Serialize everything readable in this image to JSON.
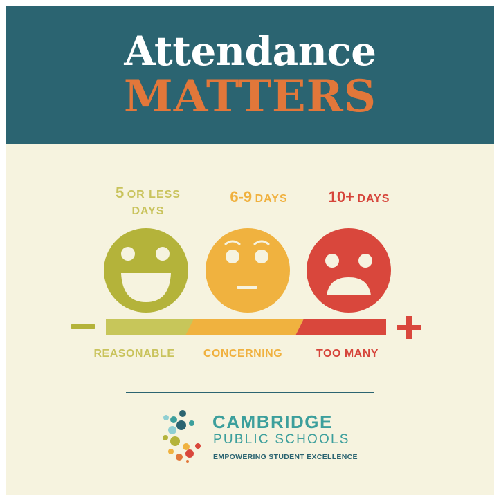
{
  "header": {
    "title_line1": "Attendance",
    "title_line2": "MATTERS"
  },
  "levels": [
    {
      "days_number": "5",
      "days_text_1": "OR LESS",
      "days_text_2": "DAYS",
      "category": "REASONABLE",
      "face": "smiling-face-icon",
      "color": "#b4b33a"
    },
    {
      "days_number": "6-9",
      "days_text_1": "DAYS",
      "category": "CONCERNING",
      "face": "neutral-face-icon",
      "color": "#f0b23f"
    },
    {
      "days_number": "10+",
      "days_text_1": "DAYS",
      "category": "TOO MANY",
      "face": "sad-face-icon",
      "color": "#d9473c"
    }
  ],
  "scale": {
    "min_symbol": "minus-icon",
    "max_symbol": "plus-icon"
  },
  "logo": {
    "line1": "CAMBRIDGE",
    "line2": "PUBLIC SCHOOLS",
    "line3": "EMPOWERING STUDENT EXCELLENCE",
    "icon": "dots-logo-icon"
  },
  "colors": {
    "header_bg": "#2b6471",
    "accent_orange": "#e2773a",
    "background": "#f6f3df",
    "green": "#b4b33a",
    "yellow": "#f0b23f",
    "red": "#d9473c",
    "teal": "#3c9f9c"
  }
}
